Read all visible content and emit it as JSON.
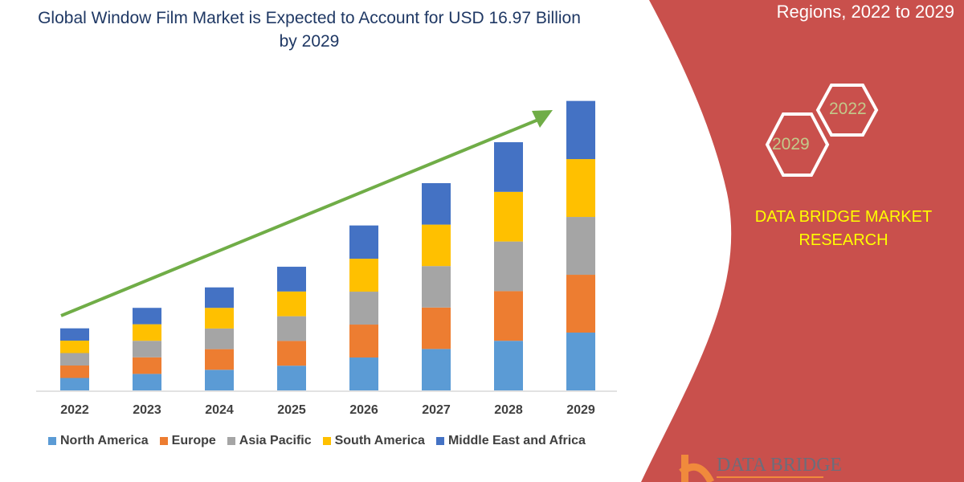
{
  "chart_data": {
    "type": "bar",
    "stacked": true,
    "title": "Global Window Film Market is Expected to Account for USD 16.97 Billion by 2029",
    "categories": [
      "2022",
      "2023",
      "2024",
      "2025",
      "2026",
      "2027",
      "2028",
      "2029"
    ],
    "series": [
      {
        "name": "North America",
        "color": "#5b9bd5",
        "values": [
          0.73,
          0.97,
          1.21,
          1.45,
          1.93,
          2.43,
          2.91,
          3.39
        ]
      },
      {
        "name": "Europe",
        "color": "#ed7d31",
        "values": [
          0.73,
          0.97,
          1.21,
          1.45,
          1.93,
          2.43,
          2.91,
          3.39
        ]
      },
      {
        "name": "Asia Pacific",
        "color": "#a5a5a5",
        "values": [
          0.73,
          0.97,
          1.21,
          1.45,
          1.93,
          2.43,
          2.91,
          3.39
        ]
      },
      {
        "name": "South America",
        "color": "#ffc000",
        "values": [
          0.73,
          0.97,
          1.21,
          1.45,
          1.93,
          2.43,
          2.91,
          3.39
        ]
      },
      {
        "name": "Middle East and Africa",
        "color": "#4472c4",
        "values": [
          0.72,
          0.96,
          1.2,
          1.45,
          1.95,
          2.43,
          2.91,
          3.41
        ]
      }
    ],
    "ylim": [
      0,
      17
    ],
    "grid": false,
    "legend": "bottom",
    "trend_arrow_color": "#70ad47"
  },
  "side_panel": {
    "title": "Regions, 2022 to 2029",
    "hex_years": [
      "2022",
      "2029"
    ],
    "brand": "DATA BRIDGE MARKET RESEARCH",
    "logo_text": "DATA BRIDGE",
    "color": "#c9504c"
  }
}
